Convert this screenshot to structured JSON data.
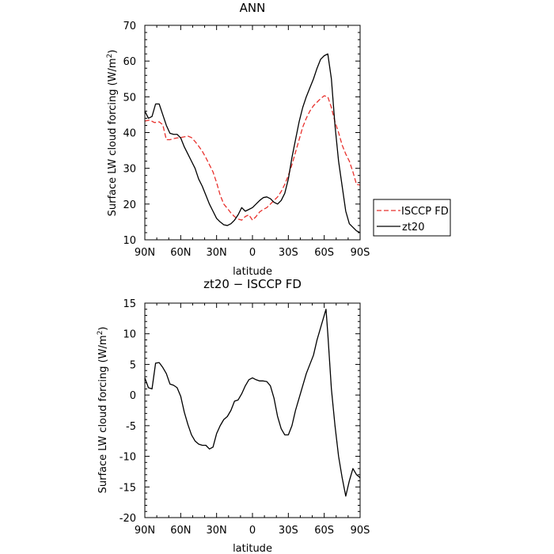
{
  "chart_data": [
    {
      "type": "line",
      "title": "ANN",
      "xlabel": "latitude",
      "ylabel": "Surface LW cloud forcing (W/m²)",
      "ylabel_parts": [
        "Surface LW cloud forcing (W/m",
        "2",
        ")"
      ],
      "xlim": [
        90,
        -90
      ],
      "ylim": [
        10,
        70
      ],
      "x_ticks": [
        {
          "value": 90,
          "label": "90N"
        },
        {
          "value": 60,
          "label": "60N"
        },
        {
          "value": 30,
          "label": "30N"
        },
        {
          "value": 0,
          "label": "0"
        },
        {
          "value": -30,
          "label": "30S"
        },
        {
          "value": -60,
          "label": "60S"
        },
        {
          "value": -90,
          "label": "90S"
        }
      ],
      "y_ticks": [
        10,
        20,
        30,
        40,
        50,
        60,
        70
      ],
      "legend": {
        "placement": "right, outside plot"
      },
      "series": [
        {
          "name": "ISCCP FD",
          "color": "#e8302c",
          "dash": "dashed",
          "x": [
            90,
            86,
            82,
            78,
            75,
            72,
            69,
            66,
            63,
            60,
            57,
            54,
            51,
            48,
            45,
            42,
            39,
            36,
            33,
            30,
            27,
            24,
            21,
            18,
            15,
            12,
            9,
            6,
            3,
            0,
            -3,
            -6,
            -9,
            -12,
            -15,
            -18,
            -21,
            -24,
            -27,
            -30,
            -33,
            -36,
            -39,
            -42,
            -45,
            -48,
            -51,
            -54,
            -57,
            -60,
            -63,
            -66,
            -69,
            -72,
            -75,
            -78,
            -81,
            -84,
            -87,
            -90
          ],
          "y": [
            43.2,
            43.5,
            42.8,
            43.0,
            42.2,
            38.0,
            38.0,
            38.3,
            38.5,
            38.6,
            38.8,
            39.0,
            38.6,
            37.5,
            36.2,
            34.8,
            33.0,
            31.0,
            29.0,
            26.0,
            22.5,
            20.0,
            18.8,
            17.5,
            16.5,
            15.8,
            15.5,
            16.5,
            17.0,
            15.5,
            16.5,
            17.8,
            18.5,
            19.0,
            20.0,
            21.0,
            22.0,
            23.5,
            25.5,
            28.0,
            31.0,
            34.5,
            38.0,
            41.5,
            44.0,
            46.0,
            47.5,
            48.5,
            49.5,
            50.3,
            50.0,
            47.0,
            43.0,
            40.0,
            36.5,
            34.0,
            32.0,
            29.0,
            25.5,
            25.3
          ]
        },
        {
          "name": "zt20",
          "color": "#000000",
          "dash": "solid",
          "x": [
            90,
            87,
            84,
            81,
            78,
            75,
            72,
            69,
            66,
            63,
            60,
            57,
            54,
            51,
            48,
            45,
            42,
            39,
            36,
            33,
            30,
            27,
            24,
            21,
            18,
            15,
            12,
            9,
            6,
            3,
            0,
            -3,
            -6,
            -9,
            -12,
            -15,
            -18,
            -21,
            -24,
            -27,
            -30,
            -33,
            -36,
            -39,
            -42,
            -45,
            -48,
            -51,
            -54,
            -57,
            -60,
            -63,
            -66,
            -69,
            -72,
            -75,
            -78,
            -81,
            -84,
            -87,
            -90
          ],
          "y": [
            46.0,
            44.0,
            44.5,
            48.0,
            48.0,
            45.0,
            42.0,
            39.8,
            39.5,
            39.5,
            38.5,
            36.0,
            34.0,
            32.0,
            30.0,
            27.0,
            25.0,
            22.5,
            20.0,
            18.0,
            16.0,
            15.0,
            14.2,
            14.0,
            14.5,
            15.5,
            17.0,
            19.0,
            18.0,
            18.5,
            19.0,
            20.0,
            21.0,
            21.8,
            22.0,
            21.5,
            20.5,
            20.0,
            21.0,
            23.0,
            27.0,
            33.0,
            38.0,
            43.0,
            47.0,
            50.0,
            52.5,
            55.0,
            58.0,
            60.5,
            61.5,
            62.0,
            55.0,
            42.0,
            32.0,
            25.0,
            18.0,
            14.5,
            13.5,
            12.5,
            12.0
          ]
        }
      ]
    },
    {
      "type": "line",
      "title": "zt20 − ISCCP FD",
      "xlabel": "latitude",
      "ylabel": "Surface LW cloud forcing (W/m²)",
      "ylabel_parts": [
        "Surface LW cloud forcing (W/m",
        "2",
        ")"
      ],
      "xlim": [
        90,
        -90
      ],
      "ylim": [
        -20,
        15
      ],
      "x_ticks": [
        {
          "value": 90,
          "label": "90N"
        },
        {
          "value": 60,
          "label": "60N"
        },
        {
          "value": 30,
          "label": "30N"
        },
        {
          "value": 0,
          "label": "0"
        },
        {
          "value": -30,
          "label": "30S"
        },
        {
          "value": -60,
          "label": "60S"
        },
        {
          "value": -90,
          "label": "90S"
        }
      ],
      "y_ticks": [
        -20,
        -15,
        -10,
        -5,
        0,
        5,
        10,
        15
      ],
      "series": [
        {
          "color": "#000000",
          "dash": "solid",
          "x": [
            90,
            87,
            84,
            81,
            78,
            75,
            72,
            69,
            66,
            63,
            60,
            57,
            54,
            51,
            48,
            45,
            42,
            39,
            36,
            33,
            30,
            27,
            24,
            21,
            18,
            15,
            12,
            9,
            6,
            3,
            0,
            -3,
            -6,
            -9,
            -12,
            -15,
            -18,
            -21,
            -24,
            -27,
            -30,
            -33,
            -36,
            -39,
            -42,
            -45,
            -48,
            -51,
            -54,
            -57,
            -60,
            -61.5,
            -63,
            -66,
            -69,
            -72,
            -75,
            -78,
            -81,
            -84,
            -87,
            -90
          ],
          "y": [
            2.8,
            1.2,
            1.0,
            5.2,
            5.3,
            4.5,
            3.5,
            1.8,
            1.6,
            1.2,
            -0.2,
            -2.8,
            -4.8,
            -6.5,
            -7.5,
            -8.0,
            -8.2,
            -8.2,
            -8.8,
            -8.5,
            -6.3,
            -5.0,
            -4.0,
            -3.5,
            -2.5,
            -1.0,
            -0.8,
            0.2,
            1.5,
            2.5,
            2.8,
            2.5,
            2.3,
            2.3,
            2.2,
            1.5,
            -0.5,
            -3.5,
            -5.5,
            -6.5,
            -6.5,
            -5.0,
            -2.5,
            -0.5,
            1.5,
            3.5,
            5.0,
            6.5,
            9.0,
            11.0,
            13.0,
            14.0,
            10.0,
            1.0,
            -5.0,
            -10.0,
            -13.5,
            -16.5,
            -14.0,
            -12.0,
            -13.0,
            -13.5
          ]
        }
      ]
    }
  ]
}
